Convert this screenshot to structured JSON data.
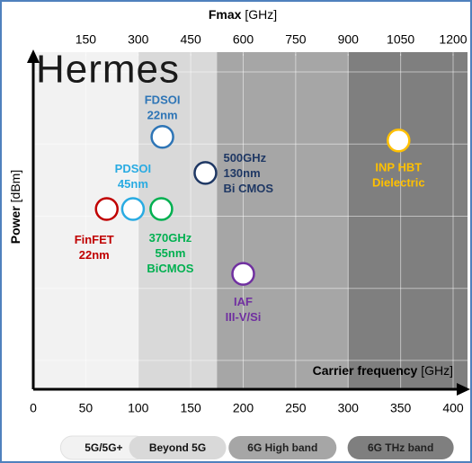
{
  "chart_data": {
    "type": "scatter",
    "logo": "Hermes",
    "x_label": {
      "name": "Carrier frequency",
      "unit": "[GHz]"
    },
    "x2_label": {
      "name": "Fmax",
      "unit": "[GHz]"
    },
    "y_label": {
      "name": "Power",
      "unit": "[dBm]"
    },
    "xlim": [
      0,
      400
    ],
    "xticks": [
      0,
      50,
      100,
      150,
      200,
      250,
      300,
      350,
      400
    ],
    "x2lim": [
      0,
      1200
    ],
    "x2ticks": [
      150,
      300,
      450,
      600,
      750,
      900,
      1050,
      1200
    ],
    "ylim": [
      -0.4,
      4.25
    ],
    "yticks": [
      0,
      1,
      2,
      3,
      4
    ],
    "grid": true,
    "bands": [
      {
        "label": "5G/5G+",
        "from": 0,
        "to": 100,
        "color": "#f2f2f2"
      },
      {
        "label": "Beyond 5G",
        "from": 100,
        "to": 175,
        "color": "#d9d9d9"
      },
      {
        "label": "6G High band",
        "from": 175,
        "to": 300,
        "color": "#a6a6a6"
      },
      {
        "label": "6G THz band",
        "from": 300,
        "to": 400,
        "color": "#7f7f7f"
      }
    ],
    "points": [
      {
        "label": [
          "FDSOI",
          "22nm"
        ],
        "x": 123,
        "y": 3.1,
        "color": "#2e75b6"
      },
      {
        "label": [
          "500GHz",
          "130nm",
          "Bi CMOS"
        ],
        "x": 164,
        "y": 2.6,
        "color": "#1f3864"
      },
      {
        "label": [
          "PDSOI",
          "45nm"
        ],
        "x": 95,
        "y": 2.1,
        "color": "#29abe2"
      },
      {
        "label": [
          "FinFET",
          "22nm"
        ],
        "x": 70,
        "y": 2.1,
        "color": "#c00000"
      },
      {
        "label": [
          "370GHz",
          "55nm",
          "BiCMOS"
        ],
        "x": 122,
        "y": 2.1,
        "color": "#00b050"
      },
      {
        "label": [
          "IAF",
          "III-V/Si"
        ],
        "x": 200,
        "y": 1.2,
        "color": "#7030a0"
      },
      {
        "label": [
          "INP HBT",
          "Dielectric"
        ],
        "x": 348,
        "y": 3.05,
        "color": "#ffc000"
      }
    ]
  }
}
